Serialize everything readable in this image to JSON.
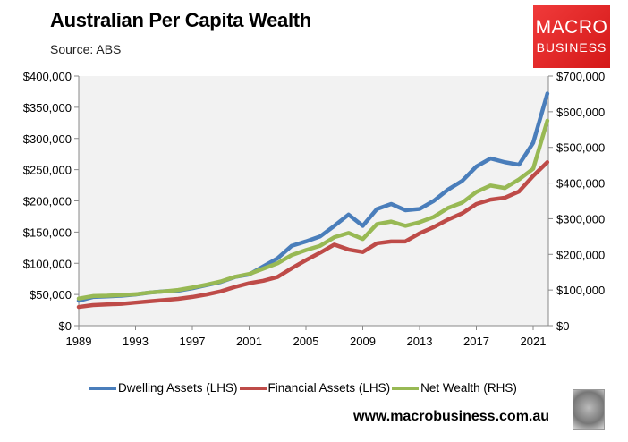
{
  "header": {
    "title": "Australian Per Capita Wealth",
    "subtitle": "Source: ABS"
  },
  "logo": {
    "line1": "MACRO",
    "line2": "BUSINESS",
    "color": "#e02020"
  },
  "footer": {
    "url": "www.macrobusiness.com.au",
    "icon": "wolf-logo-icon"
  },
  "legend": [
    {
      "label": "Dwelling Assets (LHS)",
      "color": "#4a7ebb"
    },
    {
      "label": "Financial Assets (LHS)",
      "color": "#be4b48"
    },
    {
      "label": "Net Wealth (RHS)",
      "color": "#98b954"
    }
  ],
  "chart_data": {
    "type": "line",
    "title": "Australian Per Capita Wealth",
    "subtitle": "Source: ABS",
    "xlabel": "",
    "ylabel_left": "",
    "ylabel_right": "",
    "x_ticks": [
      "1989",
      "1993",
      "1997",
      "2001",
      "2005",
      "2009",
      "2013",
      "2017",
      "2021"
    ],
    "ylim_left": [
      0,
      400000
    ],
    "ylim_right": [
      0,
      700000
    ],
    "y_ticks_left": [
      "$0",
      "$50,000",
      "$100,000",
      "$150,000",
      "$200,000",
      "$250,000",
      "$300,000",
      "$350,000",
      "$400,000"
    ],
    "y_ticks_right": [
      "$0",
      "$100,000",
      "$200,000",
      "$300,000",
      "$400,000",
      "$500,000",
      "$600,000",
      "$700,000"
    ],
    "grid": false,
    "legend_position": "bottom",
    "x": [
      1989,
      1990,
      1991,
      1992,
      1993,
      1994,
      1995,
      1996,
      1997,
      1998,
      1999,
      2000,
      2001,
      2002,
      2003,
      2004,
      2005,
      2006,
      2007,
      2008,
      2009,
      2010,
      2011,
      2012,
      2013,
      2014,
      2015,
      2016,
      2017,
      2018,
      2019,
      2020,
      2021,
      2022
    ],
    "series": [
      {
        "name": "Dwelling Assets (LHS)",
        "axis": "left",
        "color": "#4a7ebb",
        "values": [
          40000,
          46000,
          47000,
          48000,
          50000,
          53000,
          55000,
          56000,
          60000,
          65000,
          70000,
          78000,
          82000,
          95000,
          108000,
          128000,
          135000,
          143000,
          160000,
          178000,
          160000,
          187000,
          195000,
          185000,
          187000,
          200000,
          218000,
          232000,
          255000,
          268000,
          262000,
          258000,
          293000,
          372000
        ]
      },
      {
        "name": "Financial Assets (LHS)",
        "axis": "left",
        "color": "#be4b48",
        "values": [
          30000,
          33000,
          34000,
          35000,
          37000,
          39000,
          41000,
          43000,
          46000,
          50000,
          55000,
          62000,
          68000,
          72000,
          78000,
          92000,
          105000,
          117000,
          130000,
          122000,
          118000,
          132000,
          135000,
          135000,
          148000,
          158000,
          170000,
          180000,
          195000,
          202000,
          205000,
          215000,
          240000,
          262000
        ]
      },
      {
        "name": "Net Wealth (RHS)",
        "axis": "right",
        "color": "#98b954",
        "values": [
          76000,
          83000,
          84000,
          86000,
          88000,
          93000,
          96000,
          100000,
          107000,
          115000,
          124000,
          137000,
          145000,
          160000,
          175000,
          198000,
          212000,
          224000,
          248000,
          260000,
          243000,
          285000,
          292000,
          280000,
          290000,
          305000,
          330000,
          345000,
          375000,
          393000,
          386000,
          410000,
          440000,
          575000
        ]
      }
    ]
  }
}
